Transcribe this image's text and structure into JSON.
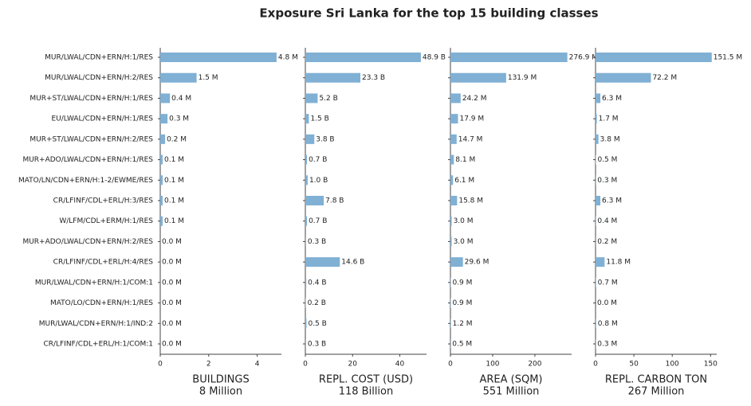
{
  "chart_data": {
    "type": "bar",
    "orientation": "horizontal",
    "title": "Exposure Sri Lanka for the top 15 building classes",
    "color": "#80b0d4",
    "categories": [
      "MUR/LWAL/CDN+ERN/H:1/RES",
      "MUR/LWAL/CDN+ERN/H:2/RES",
      "MUR+ST/LWAL/CDN+ERN/H:1/RES",
      "EU/LWAL/CDN+ERN/H:1/RES",
      "MUR+ST/LWAL/CDN+ERN/H:2/RES",
      "MUR+ADO/LWAL/CDN+ERN/H:1/RES",
      "MATO/LN/CDN+ERN/H:1-2/EWME/RES",
      "CR/LFINF/CDL+ERL/H:3/RES",
      "W/LFM/CDL+ERM/H:1/RES",
      "MUR+ADO/LWAL/CDN+ERN/H:2/RES",
      "CR/LFINF/CDL+ERL/H:4/RES",
      "MUR/LWAL/CDN+ERN/H:1/COM:1",
      "MATO/LO/CDN+ERN/H:1/RES",
      "MUR/LWAL/CDN+ERN/H:1/IND:2",
      "CR/LFINF/CDL+ERL/H:1/COM:1"
    ],
    "panels": [
      {
        "xlabel": [
          "BUILDINGS",
          "8 Million"
        ],
        "xlim": [
          0,
          5
        ],
        "xticks": [
          0,
          2,
          4
        ],
        "values": [
          4.8,
          1.5,
          0.4,
          0.3,
          0.2,
          0.1,
          0.1,
          0.1,
          0.1,
          0.0,
          0.0,
          0.0,
          0.0,
          0.0,
          0.0
        ],
        "value_labels": [
          "4.8 M",
          "1.5 M",
          "0.4 M",
          "0.3 M",
          "0.2 M",
          "0.1 M",
          "0.1 M",
          "0.1 M",
          "0.1 M",
          "0.0 M",
          "0.0 M",
          "0.0 M",
          "0.0 M",
          "0.0 M",
          "0.0 M"
        ]
      },
      {
        "xlabel": [
          "REPL. COST (USD)",
          "118 Billion"
        ],
        "xlim": [
          0,
          51.3
        ],
        "xticks": [
          0,
          20,
          40
        ],
        "values": [
          48.9,
          23.3,
          5.2,
          1.5,
          3.8,
          0.7,
          1.0,
          7.8,
          0.7,
          0.3,
          14.6,
          0.4,
          0.2,
          0.5,
          0.3
        ],
        "value_labels": [
          "48.9 B",
          "23.3 B",
          "5.2 B",
          "1.5 B",
          "3.8 B",
          "0.7 B",
          "1.0 B",
          "7.8 B",
          "0.7 B",
          "0.3 B",
          "14.6 B",
          "0.4 B",
          "0.2 B",
          "0.5 B",
          "0.3 B"
        ]
      },
      {
        "xlabel": [
          "AREA (SQM)",
          "551 Million"
        ],
        "xlim": [
          0,
          287
        ],
        "xticks": [
          0,
          100,
          200
        ],
        "values": [
          276.9,
          131.9,
          24.2,
          17.9,
          14.7,
          8.1,
          6.1,
          15.8,
          3.0,
          3.0,
          29.6,
          0.9,
          0.9,
          1.2,
          0.5
        ],
        "value_labels": [
          "276.9 M",
          "131.9 M",
          "24.2 M",
          "17.9 M",
          "14.7 M",
          "8.1 M",
          "6.1 M",
          "15.8 M",
          "3.0 M",
          "3.0 M",
          "29.6 M",
          "0.9 M",
          "0.9 M",
          "1.2 M",
          "0.5 M"
        ]
      },
      {
        "xlabel": [
          "REPL. CARBON TON",
          "267 Million"
        ],
        "xlim": [
          0,
          158
        ],
        "xticks": [
          0,
          50,
          100,
          150
        ],
        "values": [
          151.5,
          72.2,
          6.3,
          1.7,
          3.8,
          0.5,
          0.3,
          6.3,
          0.4,
          0.2,
          11.8,
          0.7,
          0.0,
          0.8,
          0.3
        ],
        "value_labels": [
          "151.5 M",
          "72.2 M",
          "6.3 M",
          "1.7 M",
          "3.8 M",
          "0.5 M",
          "0.3 M",
          "6.3 M",
          "0.4 M",
          "0.2 M",
          "11.8 M",
          "0.7 M",
          "0.0 M",
          "0.8 M",
          "0.3 M"
        ]
      }
    ]
  }
}
